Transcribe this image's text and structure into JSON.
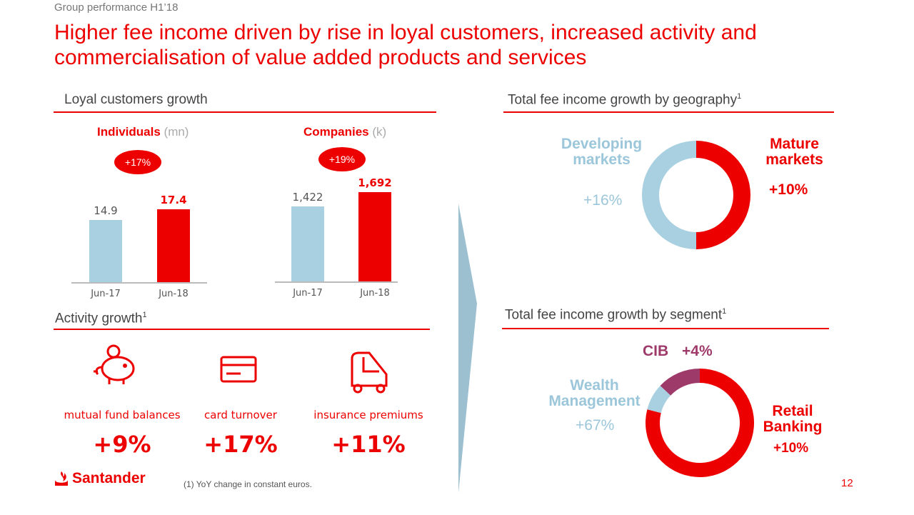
{
  "header": {
    "kicker": "Group performance H1’18",
    "title": "Higher fee income driven by rise in loyal customers, increased activity and commercialisation of value added products and services"
  },
  "loyal": {
    "title": "Loyal customers growth",
    "individuals": {
      "label": "Individuals",
      "unit": "(mn)",
      "growth": "+17%",
      "categories": [
        "Jun-17",
        "Jun-18"
      ],
      "values": [
        14.9,
        17.4
      ],
      "value_labels": [
        "14.9",
        "17.4"
      ]
    },
    "companies": {
      "label": "Companies",
      "unit": "(k)",
      "growth": "+19%",
      "categories": [
        "Jun-17",
        "Jun-18"
      ],
      "values": [
        1422,
        1692
      ],
      "value_labels": [
        "1,422",
        "1,692"
      ]
    }
  },
  "activity": {
    "title": "Activity growth",
    "sup": "1",
    "items": [
      {
        "icon": "piggy-bank-icon",
        "label": "mutual fund balances",
        "value": "+9%"
      },
      {
        "icon": "credit-card-icon",
        "label": "card turnover",
        "value": "+17%"
      },
      {
        "icon": "car-icon",
        "label": "insurance premiums",
        "value": "+11%"
      }
    ]
  },
  "geography": {
    "title": "Total fee income growth by geography",
    "sup": "1",
    "segments": [
      {
        "name": "Mature markets",
        "line1": "Mature",
        "line2": "markets",
        "growth": "+10%",
        "share": 50,
        "color": "#ec0000"
      },
      {
        "name": "Developing markets",
        "line1": "Developing",
        "line2": "markets",
        "growth": "+16%",
        "share": 50,
        "color": "#a8d0e0"
      }
    ]
  },
  "segment": {
    "title": "Total fee income growth by segment",
    "sup": "1",
    "segments": [
      {
        "name": "Retail Banking",
        "line1": "Retail",
        "line2": "Banking",
        "growth": "+10%",
        "share": 79,
        "color": "#ec0000"
      },
      {
        "name": "Wealth Management",
        "line1": "Wealth",
        "line2": "Management",
        "growth": "+67%",
        "share": 8,
        "color": "#a8d0e0"
      },
      {
        "name": "CIB",
        "line1": "CIB",
        "growth": "+4%",
        "share": 13,
        "color": "#9e3a6a"
      }
    ]
  },
  "footer": {
    "brand": "Santander",
    "footnote": "(1) YoY change in constant euros.",
    "page": "12"
  },
  "colors": {
    "red": "#ec0000",
    "blue": "#a8d0e0",
    "purple": "#9e3a6a"
  }
}
